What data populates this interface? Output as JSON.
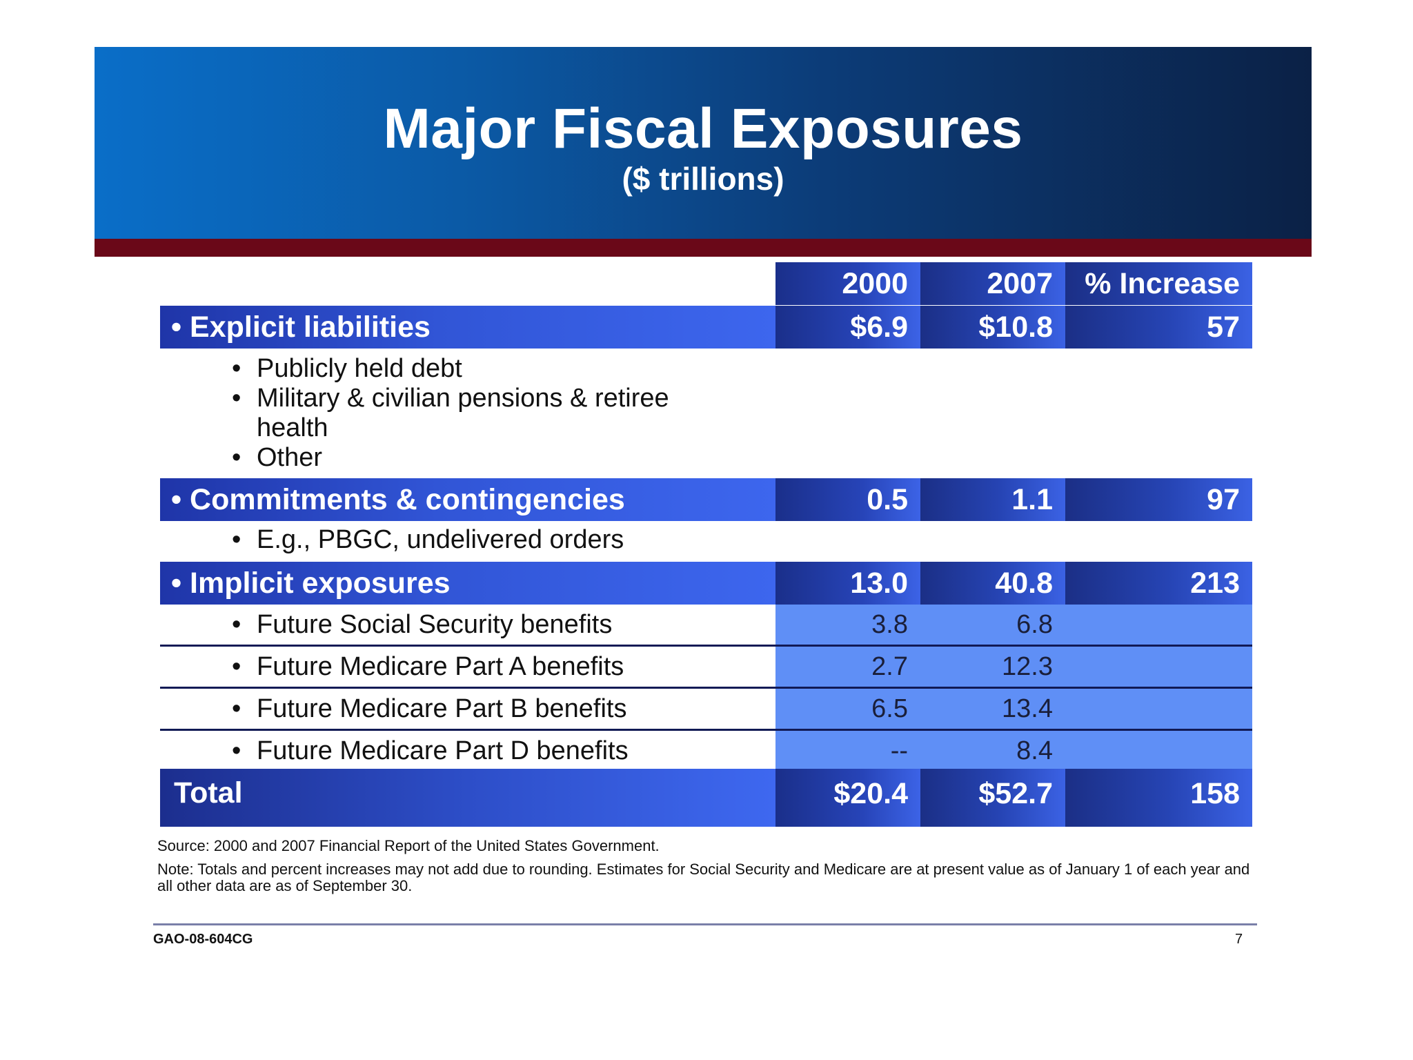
{
  "header": {
    "title": "Major Fiscal Exposures",
    "subtitle": "($ trillions)"
  },
  "columns": [
    "2000",
    "2007",
    "% Increase"
  ],
  "sections": [
    {
      "label": "Explicit liabilities",
      "values": [
        "$6.9",
        "$10.8",
        "57"
      ],
      "items": [
        "Publicly held debt",
        "Military & civilian pensions & retiree",
        "health",
        "Other"
      ]
    },
    {
      "label": "Commitments & contingencies",
      "values": [
        "0.5",
        "1.1",
        "97"
      ],
      "items": [
        "E.g., PBGC, undelivered orders"
      ]
    },
    {
      "label": "Implicit exposures",
      "values": [
        "13.0",
        "40.8",
        "213"
      ],
      "rows": [
        {
          "label": "Future Social Security benefits",
          "values": [
            "3.8",
            "6.8"
          ]
        },
        {
          "label": "Future Medicare Part A benefits",
          "values": [
            "2.7",
            "12.3"
          ]
        },
        {
          "label": "Future Medicare Part B benefits",
          "values": [
            "6.5",
            "13.4"
          ]
        },
        {
          "label": "Future Medicare Part D benefits",
          "values": [
            "--",
            "8.4"
          ]
        }
      ]
    }
  ],
  "total": {
    "label": "Total",
    "values": [
      "$20.4",
      "$52.7",
      "158"
    ]
  },
  "source": "Source:  2000 and 2007 Financial Report of the United States Government.",
  "note": "Note: Totals and percent  increases may not add due to rounding.  Estimates for Social Security and Medicare are at present value as of January 1 of each year and all other data are as of September 30.",
  "footer": {
    "doc_id": "GAO-08-604CG",
    "page": "7"
  },
  "bullet": "•",
  "colors": {
    "banner_dark": "#0b2146",
    "banner_light": "#0a6ec8",
    "accent_red": "#6a0818",
    "row_blue": "#3d66ee",
    "cell_light_blue": "#5f8ff6"
  }
}
